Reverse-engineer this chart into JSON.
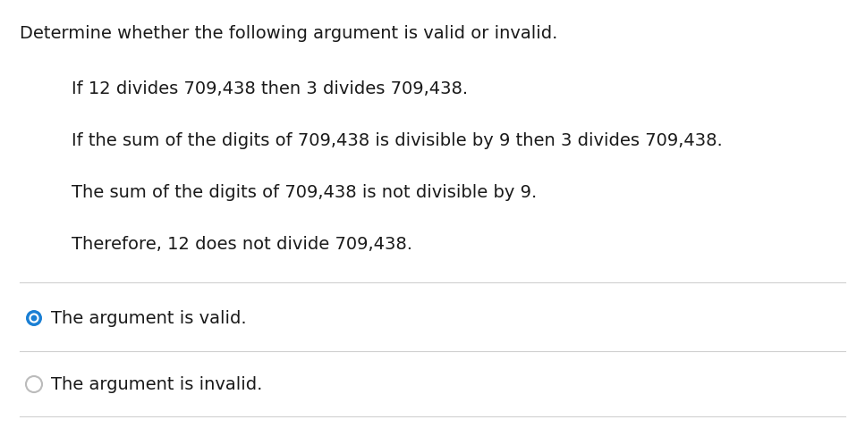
{
  "background_color": "#ffffff",
  "title_text": "Determine whether the following argument is valid or invalid.",
  "premise1": "If 12 divides 709,438 then 3 divides 709,438.",
  "premise2": "If the sum of the digits of 709,438 is divisible by 9 then 3 divides 709,438.",
  "premise3": "The sum of the digits of 709,438 is not divisible by 9.",
  "conclusion": "Therefore, 12 does not divide 709,438.",
  "option1": "The argument is valid.",
  "option2": "The argument is invalid.",
  "text_color": "#1a1a1a",
  "option1_color": "#1a1a1a",
  "option2_color": "#1a1a1a",
  "selected_radio_blue": "#1a7fd4",
  "unselected_radio_edge": "#bbbbbb",
  "divider_color": "#d0d0d0",
  "title_fontsize": 14,
  "body_fontsize": 14,
  "option_fontsize": 14,
  "fig_width": 9.67,
  "fig_height": 4.79,
  "dpi": 100
}
